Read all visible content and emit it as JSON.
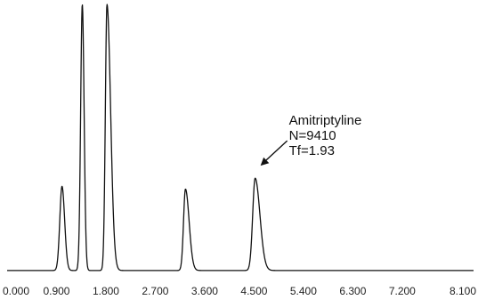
{
  "chart_data": {
    "type": "line",
    "title": "",
    "xlabel": "",
    "ylabel": "",
    "xlim": [
      0,
      8.5
    ],
    "ylim": [
      0,
      1.0
    ],
    "x_ticks": [
      "0.000",
      "0.900",
      "1.800",
      "2.700",
      "3.600",
      "4.500",
      "5.400",
      "6.300",
      "7.200",
      "8.100"
    ],
    "x_tick_values": [
      0.0,
      0.9,
      1.8,
      2.7,
      3.6,
      4.5,
      5.4,
      6.3,
      7.2,
      8.1
    ],
    "grid": false,
    "baseline": 0.03,
    "peaks": [
      {
        "rt": 1.0,
        "height": 0.31,
        "width": 0.04,
        "tail": 1.2
      },
      {
        "rt": 1.37,
        "height": 0.98,
        "width": 0.03,
        "tail": 1.1
      },
      {
        "rt": 1.82,
        "height": 0.98,
        "width": 0.03,
        "tail": 2.2
      },
      {
        "rt": 3.25,
        "height": 0.3,
        "width": 0.035,
        "tail": 1.9
      },
      {
        "rt": 4.52,
        "height": 0.34,
        "width": 0.045,
        "tail": 1.93
      }
    ],
    "annotation": {
      "target_rt": 4.52,
      "lines": [
        "Amitriptyline",
        "N=9410",
        "Tf=1.93"
      ]
    },
    "line_color": "#111111"
  }
}
